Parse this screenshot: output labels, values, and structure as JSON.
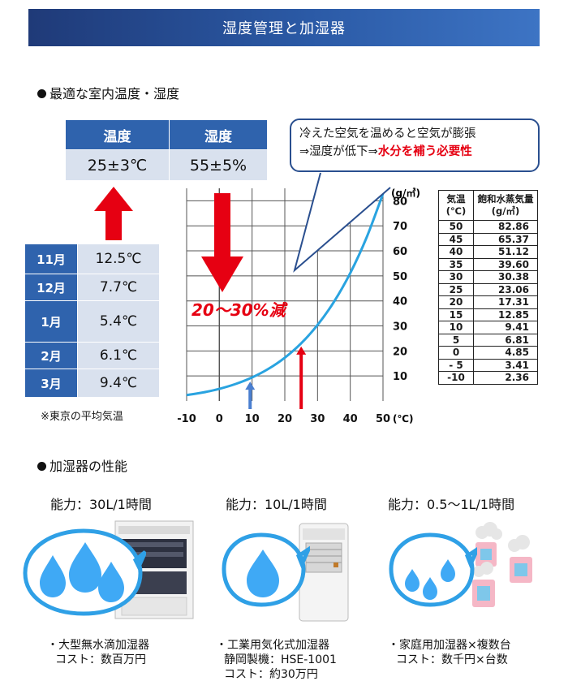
{
  "banner": {
    "title": "湿度管理と加湿器"
  },
  "section1": {
    "heading": "最適な室内温度・湿度"
  },
  "optimal": {
    "temp_header": "温度",
    "humidity_header": "湿度",
    "temp_value": "25±3℃",
    "humidity_value": "55±5%"
  },
  "monthly": {
    "rows": [
      {
        "month": "11月",
        "temp": "12.5℃"
      },
      {
        "month": "12月",
        "temp": "7.7℃"
      },
      {
        "month": "1月",
        "temp": "5.4℃"
      },
      {
        "month": "2月",
        "temp": "6.1℃"
      },
      {
        "month": "3月",
        "temp": "9.4℃"
      }
    ],
    "note": "※東京の平均気温"
  },
  "callout": {
    "line1": "冷えた空気を温めると空気が膨張",
    "line2_prefix": "⇒湿度が低下⇒",
    "line2_emphasis": "水分を補う必要性"
  },
  "reduction_label": "20～30%減",
  "vapor_table": {
    "col_temp": [
      "気温",
      "(℃)"
    ],
    "col_vapor": [
      "飽和水蒸気量",
      "(g/㎥)"
    ],
    "rows": [
      [
        "50",
        "82.86"
      ],
      [
        "45",
        "65.37"
      ],
      [
        "40",
        "51.12"
      ],
      [
        "35",
        "39.60"
      ],
      [
        "30",
        "30.38"
      ],
      [
        "25",
        "23.06"
      ],
      [
        "20",
        "17.31"
      ],
      [
        "15",
        "12.85"
      ],
      [
        "10",
        "9.41"
      ],
      [
        "5",
        "6.81"
      ],
      [
        "0",
        "4.85"
      ],
      [
        "- 5",
        "3.41"
      ],
      [
        "-10",
        "2.36"
      ]
    ]
  },
  "chart_data": {
    "type": "line",
    "x": [
      -10,
      -5,
      0,
      5,
      10,
      15,
      20,
      25,
      30,
      35,
      40,
      45,
      50
    ],
    "series": [
      {
        "values": [
          2.36,
          3.41,
          4.85,
          6.81,
          9.41,
          12.85,
          17.31,
          23.06,
          30.38,
          39.6,
          51.12,
          65.37,
          82.86
        ]
      }
    ],
    "xticks": [
      "-10",
      "0",
      "10",
      "20",
      "30",
      "40",
      "50"
    ],
    "x_unit": "(℃)",
    "yticks": [
      "10",
      "20",
      "30",
      "40",
      "50",
      "60",
      "70",
      "80"
    ],
    "y_unit": "(g/㎥)",
    "xlim": [
      -10,
      50
    ],
    "ylim": [
      0,
      85
    ],
    "grid": true,
    "line_color": "#29a3e0",
    "markers": [
      {
        "x": 9.4,
        "color": "#4a7fd0"
      },
      {
        "x": 25,
        "color": "#e60012"
      }
    ]
  },
  "section2": {
    "heading": "加湿器の性能"
  },
  "humidifiers": [
    {
      "capacity": "能力：30L/1時間",
      "name": "・大型無水滴加湿器",
      "cost": "コスト：数百万円",
      "extra": ""
    },
    {
      "capacity": "能力：10L/1時間",
      "name": "・工業用気化式加湿器",
      "cost": "静岡製機：HSE-1001",
      "extra": "コスト：約30万円"
    },
    {
      "capacity": "能力：0.5～1L/1時間",
      "name": "・家庭用加湿器×複数台",
      "cost": "コスト：数千円×台数",
      "extra": ""
    }
  ],
  "colors": {
    "banner": "#2b5aa6",
    "header_cell": "#2f63ad",
    "value_cell": "#d9e1ee",
    "accent_red": "#e60012",
    "drop": "#3fa9f5"
  }
}
